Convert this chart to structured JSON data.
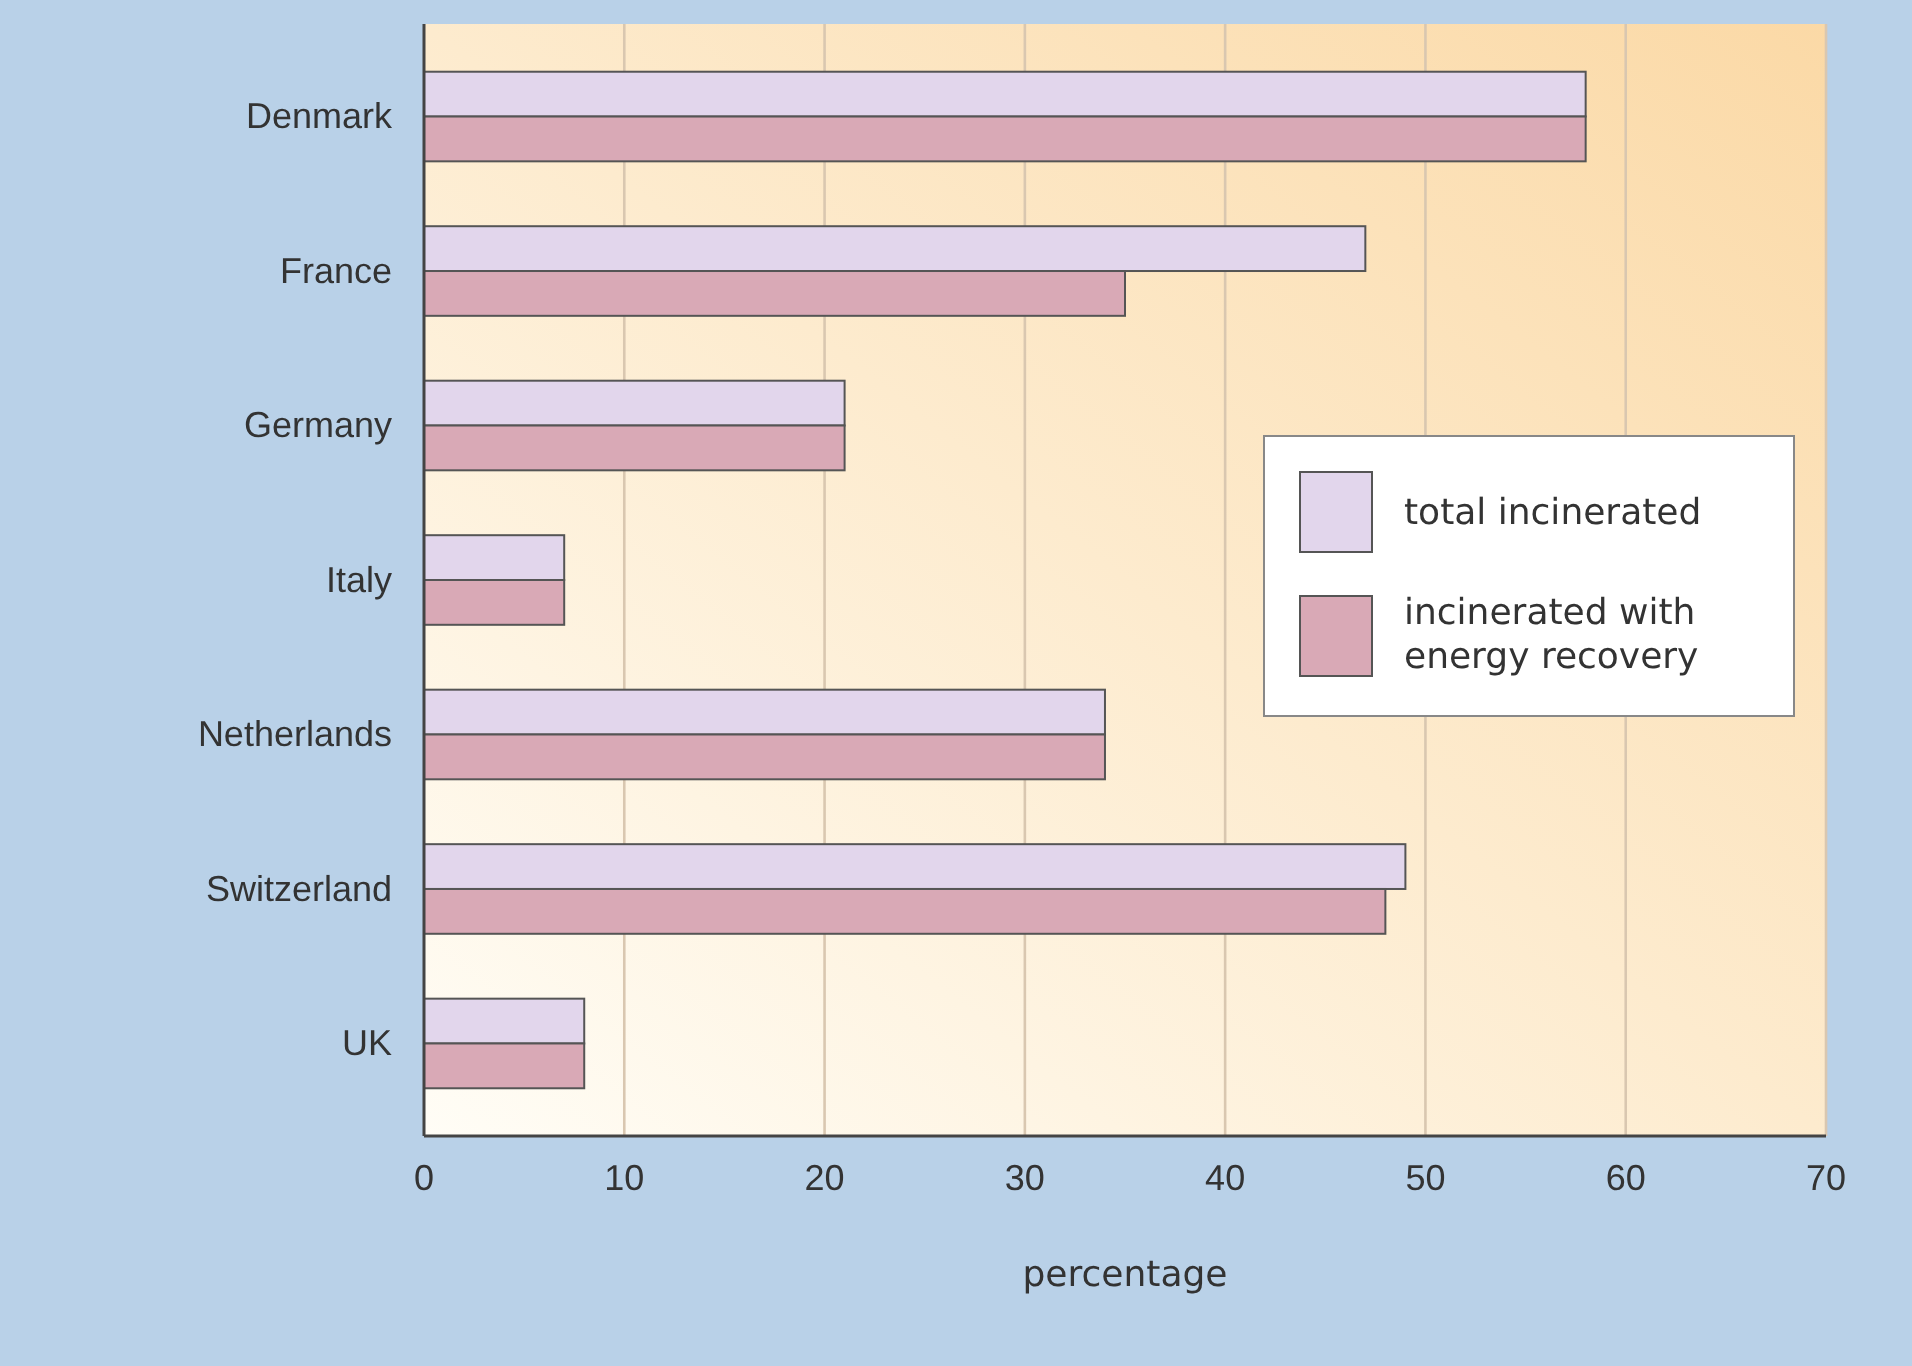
{
  "chart_data": {
    "type": "bar",
    "orientation": "horizontal",
    "xlabel": "percentage",
    "categories": [
      "Denmark",
      "France",
      "Germany",
      "Italy",
      "Netherlands",
      "Switzerland",
      "UK"
    ],
    "series": [
      {
        "name": "total incinerated",
        "color": "#e2d6ec",
        "values": [
          58,
          47,
          21,
          7,
          34,
          49,
          8
        ]
      },
      {
        "name": "incinerated with energy recovery",
        "color": "#d9a9b6",
        "values": [
          58,
          35,
          21,
          7,
          34,
          48,
          8
        ]
      }
    ],
    "xlim": [
      0,
      70
    ],
    "xticks": [
      0,
      10,
      20,
      30,
      40,
      50,
      60,
      70
    ],
    "grid": "x",
    "legend": "right"
  }
}
